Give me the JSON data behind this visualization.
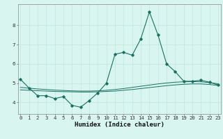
{
  "xlabel": "Humidex (Indice chaleur)",
  "background_color": "#d8f5f0",
  "grid_color": "#c0e8e0",
  "line_color": "#1a7060",
  "x": [
    0,
    1,
    2,
    3,
    4,
    5,
    6,
    7,
    8,
    9,
    10,
    11,
    12,
    13,
    14,
    15,
    16,
    17,
    18,
    19,
    20,
    21,
    22,
    23
  ],
  "series_main": [
    5.2,
    4.75,
    4.35,
    4.35,
    4.2,
    4.3,
    3.85,
    3.75,
    4.1,
    4.5,
    5.0,
    6.5,
    6.6,
    6.45,
    7.3,
    8.7,
    7.5,
    6.0,
    5.6,
    5.1,
    5.1,
    5.15,
    5.05,
    4.9
  ],
  "series_trend1": [
    4.78,
    4.74,
    4.7,
    4.67,
    4.64,
    4.62,
    4.6,
    4.59,
    4.59,
    4.6,
    4.63,
    4.67,
    4.72,
    4.78,
    4.84,
    4.9,
    4.96,
    5.01,
    5.05,
    5.07,
    5.08,
    5.07,
    5.03,
    4.97
  ],
  "series_trend2": [
    4.65,
    4.63,
    4.61,
    4.59,
    4.57,
    4.56,
    4.55,
    4.54,
    4.54,
    4.55,
    4.57,
    4.59,
    4.63,
    4.67,
    4.72,
    4.77,
    4.82,
    4.87,
    4.91,
    4.94,
    4.96,
    4.96,
    4.93,
    4.88
  ],
  "ylim": [
    3.4,
    9.1
  ],
  "yticks": [
    4,
    5,
    6,
    7,
    8
  ],
  "xlim": [
    -0.3,
    23.3
  ],
  "xticks": [
    0,
    1,
    2,
    3,
    4,
    5,
    6,
    7,
    8,
    9,
    10,
    11,
    12,
    13,
    14,
    15,
    16,
    17,
    18,
    19,
    20,
    21,
    22,
    23
  ],
  "tick_fontsize": 5.2,
  "label_fontsize": 6.5,
  "label_fontweight": "bold"
}
